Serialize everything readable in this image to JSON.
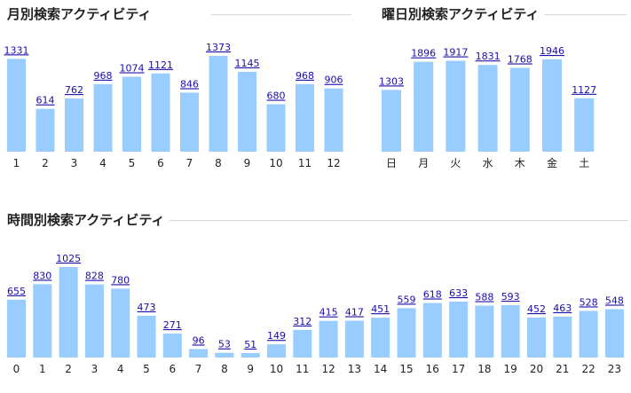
{
  "colors": {
    "bar": "#99ccff",
    "value_label": "#1a0dab",
    "axis_label": "#222222",
    "rule": "#d8d8d8"
  },
  "chart_data": [
    {
      "id": "monthly",
      "type": "bar",
      "title": "月別検索アクティビティ",
      "categories": [
        "1",
        "2",
        "3",
        "4",
        "5",
        "6",
        "7",
        "8",
        "9",
        "10",
        "11",
        "12"
      ],
      "values": [
        1331,
        614,
        762,
        968,
        1074,
        1121,
        846,
        1373,
        1145,
        680,
        968,
        906
      ],
      "ylim": [
        0,
        1373
      ],
      "grid": false,
      "data_labels": true
    },
    {
      "id": "weekday",
      "type": "bar",
      "title": "曜日別検索アクティビティ",
      "categories": [
        "日",
        "月",
        "火",
        "水",
        "木",
        "金",
        "土"
      ],
      "values": [
        1303,
        1896,
        1917,
        1831,
        1768,
        1946,
        1127
      ],
      "ylim": [
        0,
        1946
      ],
      "grid": false,
      "data_labels": true
    },
    {
      "id": "hourly",
      "type": "bar",
      "title": "時間別検索アクティビティ",
      "categories": [
        "0",
        "1",
        "2",
        "3",
        "4",
        "5",
        "6",
        "7",
        "8",
        "9",
        "10",
        "11",
        "12",
        "13",
        "14",
        "15",
        "16",
        "17",
        "18",
        "19",
        "20",
        "21",
        "22",
        "23"
      ],
      "values": [
        655,
        830,
        1025,
        828,
        780,
        473,
        271,
        96,
        53,
        51,
        149,
        312,
        415,
        417,
        451,
        559,
        618,
        633,
        588,
        593,
        452,
        463,
        528,
        548
      ],
      "ylim": [
        0,
        1025
      ],
      "grid": false,
      "data_labels": true
    }
  ]
}
